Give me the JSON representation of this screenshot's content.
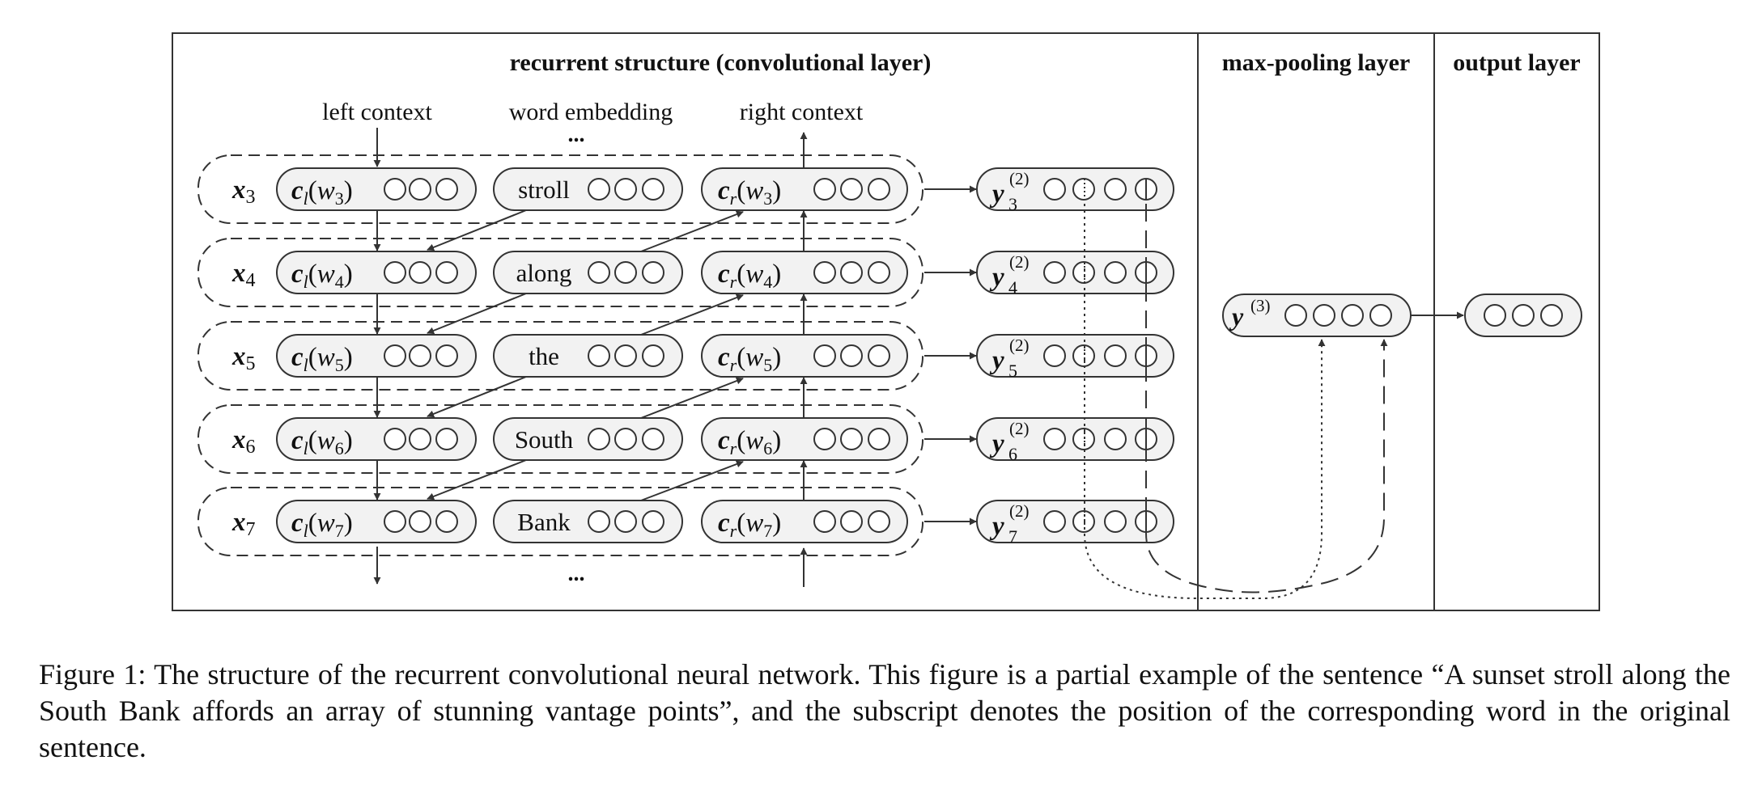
{
  "panels": {
    "recurrent_title": "recurrent structure (convolutional layer)",
    "maxpool_title": "max-pooling layer",
    "output_title": "output layer"
  },
  "column_headers": {
    "left": "left context",
    "embedding": "word embedding",
    "right": "right context"
  },
  "ellipsis": "...",
  "rows": [
    {
      "x_sub": "3",
      "word": "stroll",
      "y_sub": "3"
    },
    {
      "x_sub": "4",
      "word": "along",
      "y_sub": "4"
    },
    {
      "x_sub": "5",
      "word": "the",
      "y_sub": "5"
    },
    {
      "x_sub": "6",
      "word": "South",
      "y_sub": "6"
    },
    {
      "x_sub": "7",
      "word": "Bank",
      "y_sub": "7"
    }
  ],
  "symbols": {
    "x": "x",
    "c": "c",
    "w": "w",
    "left_sub": "l",
    "right_sub": "r",
    "y": "y",
    "layer2": "(2)",
    "layer3": "(3)"
  },
  "caption": "Figure 1: The structure of the recurrent convolutional neural network. This figure is a partial example of the sentence “A sunset stroll along the South Bank affords an array of stunning vantage points”, and the subscript denotes the position of the corresponding word in the original sentence."
}
